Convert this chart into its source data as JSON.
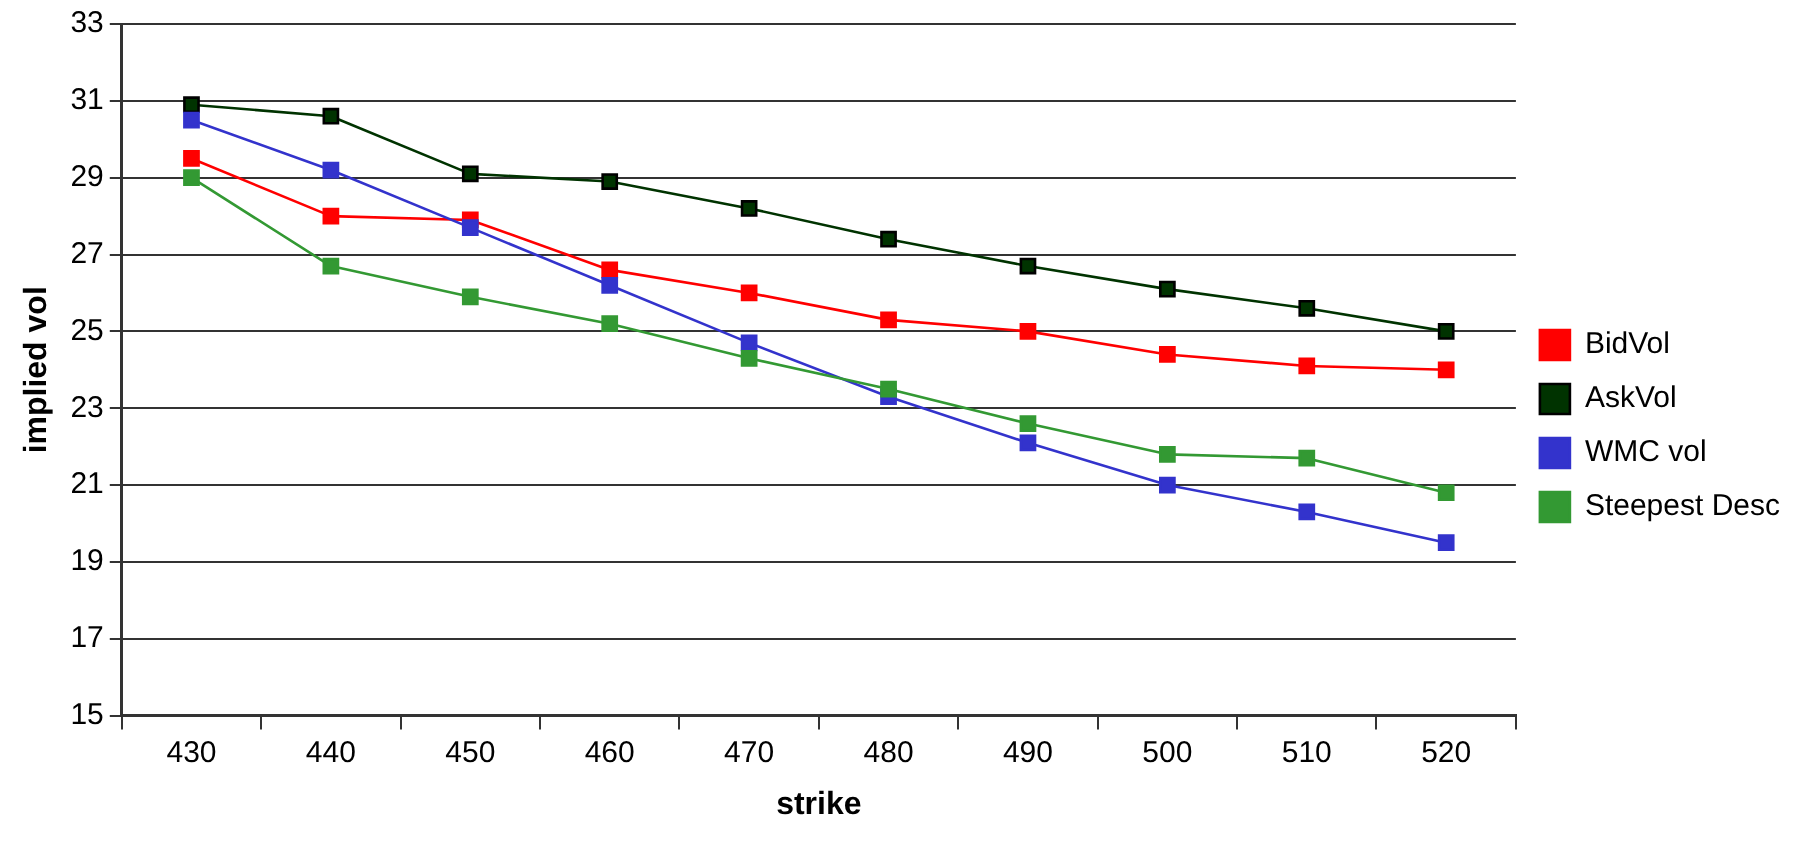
{
  "chart_data": {
    "type": "line",
    "xlabel": "strike",
    "ylabel": "implied vol",
    "categories": [
      "430",
      "440",
      "450",
      "460",
      "470",
      "480",
      "490",
      "500",
      "510",
      "520"
    ],
    "ylim": [
      15,
      33
    ],
    "yticks": [
      15,
      17,
      19,
      21,
      23,
      25,
      27,
      29,
      31,
      33
    ],
    "grid": "y",
    "legend": "right",
    "marker": "square",
    "line_style": "solid",
    "series": [
      {
        "name": "BidVol",
        "color": "#ff0000",
        "values": [
          29.5,
          28.0,
          27.9,
          26.6,
          26.0,
          25.3,
          25.0,
          24.4,
          24.1,
          24.0
        ]
      },
      {
        "name": "AskVol",
        "color": "#003300",
        "values": [
          30.9,
          30.6,
          29.1,
          28.9,
          28.2,
          27.4,
          26.7,
          26.1,
          25.6,
          25.0
        ]
      },
      {
        "name": "WMC vol",
        "color": "#3333cc",
        "values": [
          30.5,
          29.2,
          27.7,
          26.2,
          24.7,
          23.3,
          22.1,
          21.0,
          20.3,
          19.5
        ]
      },
      {
        "name": "Steepest Desc",
        "color": "#339933",
        "values": [
          29.0,
          26.7,
          25.9,
          25.2,
          24.3,
          23.5,
          22.6,
          21.8,
          21.7,
          20.8
        ]
      }
    ]
  }
}
